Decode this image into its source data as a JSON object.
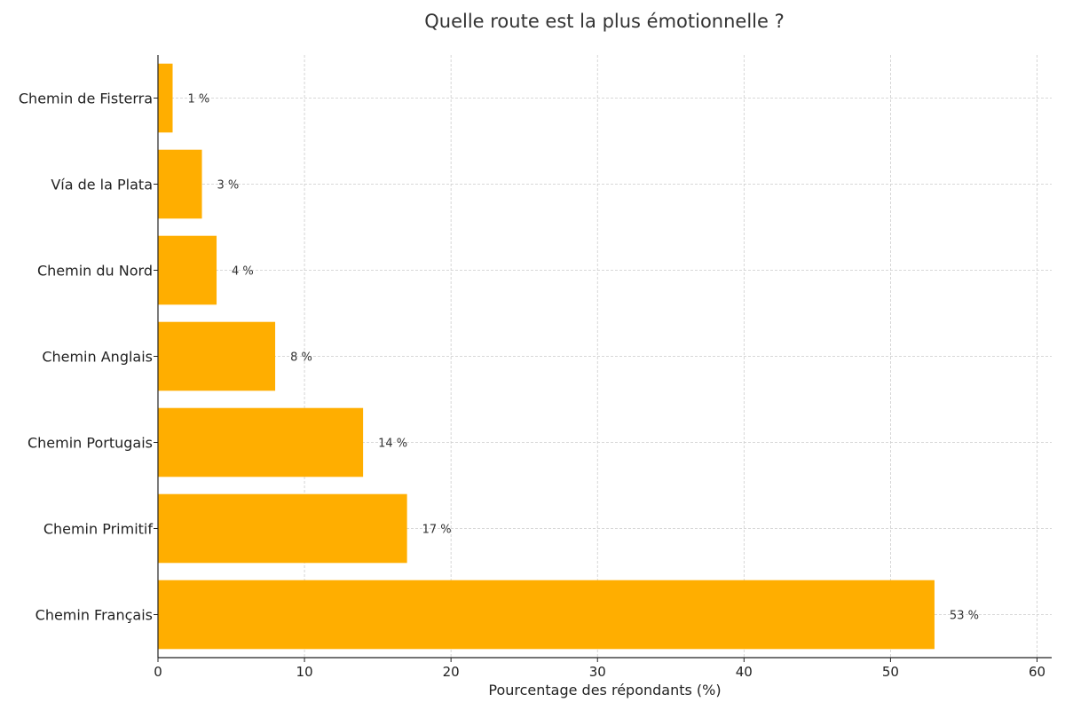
{
  "chart_data": {
    "type": "bar",
    "orientation": "horizontal",
    "title": "Quelle route est la plus émotionnelle ?",
    "xlabel": "Pourcentage des répondants (%)",
    "ylabel": "",
    "xlim": [
      0,
      61
    ],
    "xticks": [
      0,
      10,
      20,
      30,
      40,
      50,
      60
    ],
    "categories": [
      "Chemin Français",
      "Chemin Primitif",
      "Chemin Portugais",
      "Chemin Anglais",
      "Chemin du Nord",
      "Vía de la Plata",
      "Chemin de Fisterra"
    ],
    "values": [
      53,
      17,
      14,
      8,
      4,
      3,
      1
    ],
    "value_labels": [
      "53 %",
      "17 %",
      "14 %",
      "8 %",
      "4 %",
      "3 %",
      "1 %"
    ],
    "bar_color": "#FFAE00",
    "grid": true
  }
}
